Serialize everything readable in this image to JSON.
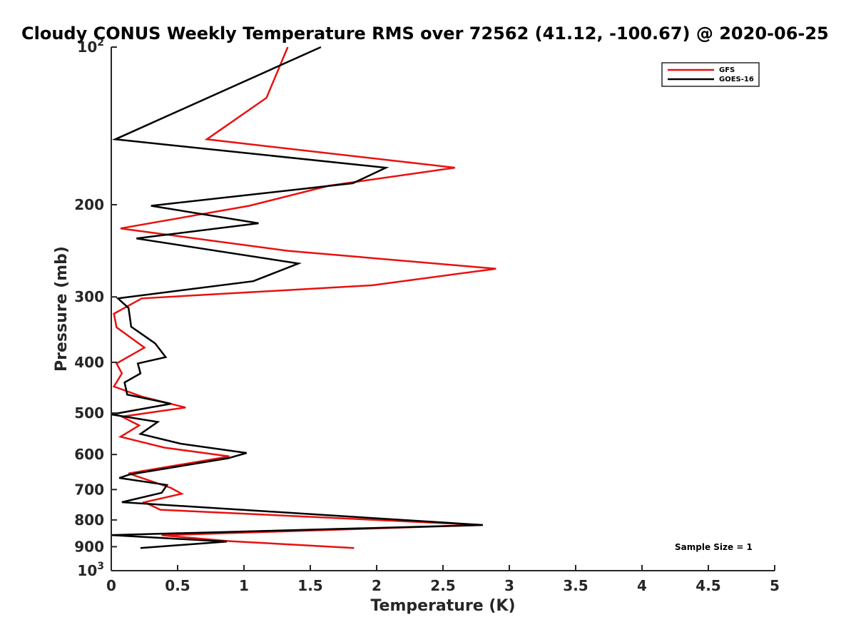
{
  "chart_data": {
    "type": "line",
    "title": "Cloudy CONUS Weekly Temperature RMS over 72562 (41.12, -100.67) @ 2020-06-25",
    "xlabel": "Temperature (K)",
    "ylabel": "Pressure (mb)",
    "xlim": [
      0,
      5
    ],
    "ylim": [
      100,
      1000
    ],
    "y_scale": "log",
    "y_reversed": true,
    "grid": false,
    "legend_position": "top-right",
    "x_ticks": [
      "0",
      "0.5",
      "1",
      "1.5",
      "2",
      "2.5",
      "3",
      "3.5",
      "4",
      "4.5",
      "5"
    ],
    "y_ticks": [
      {
        "base": "10",
        "exp": "2",
        "value": 100
      },
      {
        "label": "200",
        "value": 200
      },
      {
        "label": "300",
        "value": 300
      },
      {
        "label": "400",
        "value": 400
      },
      {
        "label": "500",
        "value": 500
      },
      {
        "label": "600",
        "value": 600
      },
      {
        "label": "700",
        "value": 700
      },
      {
        "label": "800",
        "value": 800
      },
      {
        "label": "900",
        "value": 900
      },
      {
        "base": "10",
        "exp": "3",
        "value": 1000
      }
    ],
    "annotation": "Sample Size = 1",
    "series": [
      {
        "name": "GFS",
        "color": "#e8110f",
        "points": [
          [
            1.33,
            100
          ],
          [
            1.17,
            125
          ],
          [
            0.72,
            150
          ],
          [
            2.59,
            170
          ],
          [
            1.64,
            184
          ],
          [
            1.04,
            201
          ],
          [
            0.07,
            222
          ],
          [
            1.33,
            245
          ],
          [
            2.9,
            265
          ],
          [
            1.97,
            285
          ],
          [
            0.23,
            302
          ],
          [
            0.02,
            323
          ],
          [
            0.04,
            343
          ],
          [
            0.25,
            375
          ],
          [
            0.04,
            402
          ],
          [
            0.08,
            420
          ],
          [
            0.02,
            445
          ],
          [
            0.23,
            465
          ],
          [
            0.56,
            488
          ],
          [
            0.08,
            508
          ],
          [
            0.21,
            528
          ],
          [
            0.07,
            555
          ],
          [
            0.4,
            582
          ],
          [
            0.89,
            605
          ],
          [
            0.13,
            652
          ],
          [
            0.45,
            695
          ],
          [
            0.53,
            713
          ],
          [
            0.25,
            740
          ],
          [
            0.37,
            765
          ],
          [
            2.8,
            818
          ],
          [
            0.38,
            856
          ],
          [
            0.88,
            878
          ],
          [
            1.83,
            905
          ]
        ]
      },
      {
        "name": "GOES-16",
        "color": "#000000",
        "points": [
          [
            1.58,
            100
          ],
          [
            0.03,
            150
          ],
          [
            2.07,
            170
          ],
          [
            1.82,
            182
          ],
          [
            0.3,
            201
          ],
          [
            1.11,
            217
          ],
          [
            0.19,
            232
          ],
          [
            1.41,
            259
          ],
          [
            1.07,
            280
          ],
          [
            0.05,
            302
          ],
          [
            0.13,
            315
          ],
          [
            0.15,
            342
          ],
          [
            0.33,
            368
          ],
          [
            0.41,
            391
          ],
          [
            0.2,
            402
          ],
          [
            0.22,
            420
          ],
          [
            0.1,
            437
          ],
          [
            0.12,
            461
          ],
          [
            0.45,
            480
          ],
          [
            0.0,
            503
          ],
          [
            0.35,
            520
          ],
          [
            0.22,
            548
          ],
          [
            0.52,
            572
          ],
          [
            1.02,
            596
          ],
          [
            0.88,
            610
          ],
          [
            0.14,
            655
          ],
          [
            0.06,
            665
          ],
          [
            0.42,
            686
          ],
          [
            0.38,
            710
          ],
          [
            0.08,
            740
          ],
          [
            2.8,
            818
          ],
          [
            0.0,
            855
          ],
          [
            0.87,
            880
          ],
          [
            0.22,
            905
          ]
        ]
      }
    ]
  }
}
